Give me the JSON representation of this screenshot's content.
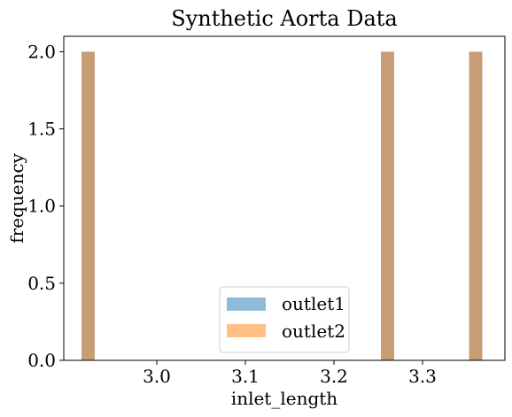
{
  "chart_data": {
    "type": "histogram",
    "title": "Synthetic Aorta Data",
    "xlabel": "inlet_length",
    "ylabel": "frequency",
    "xlim": [
      2.895,
      3.393
    ],
    "ylim": [
      0,
      2.1
    ],
    "xticks": [
      "3.0",
      "3.1",
      "3.2",
      "3.3"
    ],
    "xtick_values": [
      3.0,
      3.1,
      3.2,
      3.3
    ],
    "yticks": [
      "0.0",
      "0.5",
      "1.0",
      "1.5",
      "2.0"
    ],
    "ytick_values": [
      0.0,
      0.5,
      1.0,
      1.5,
      2.0
    ],
    "bin_width": 0.0149,
    "series": [
      {
        "name": "outlet1",
        "color": "#1f77b4",
        "alpha": 0.5,
        "bins": [
          {
            "x": 2.9225,
            "count": 2
          },
          {
            "x": 3.2605,
            "count": 2
          },
          {
            "x": 3.36,
            "count": 2
          }
        ]
      },
      {
        "name": "outlet2",
        "color": "#ff7f0e",
        "alpha": 0.5,
        "bins": [
          {
            "x": 2.9225,
            "count": 2
          },
          {
            "x": 3.2605,
            "count": 2
          },
          {
            "x": 3.36,
            "count": 2
          }
        ]
      }
    ],
    "legend": {
      "position": "lower-center",
      "entries": [
        "outlet1",
        "outlet2"
      ]
    }
  }
}
